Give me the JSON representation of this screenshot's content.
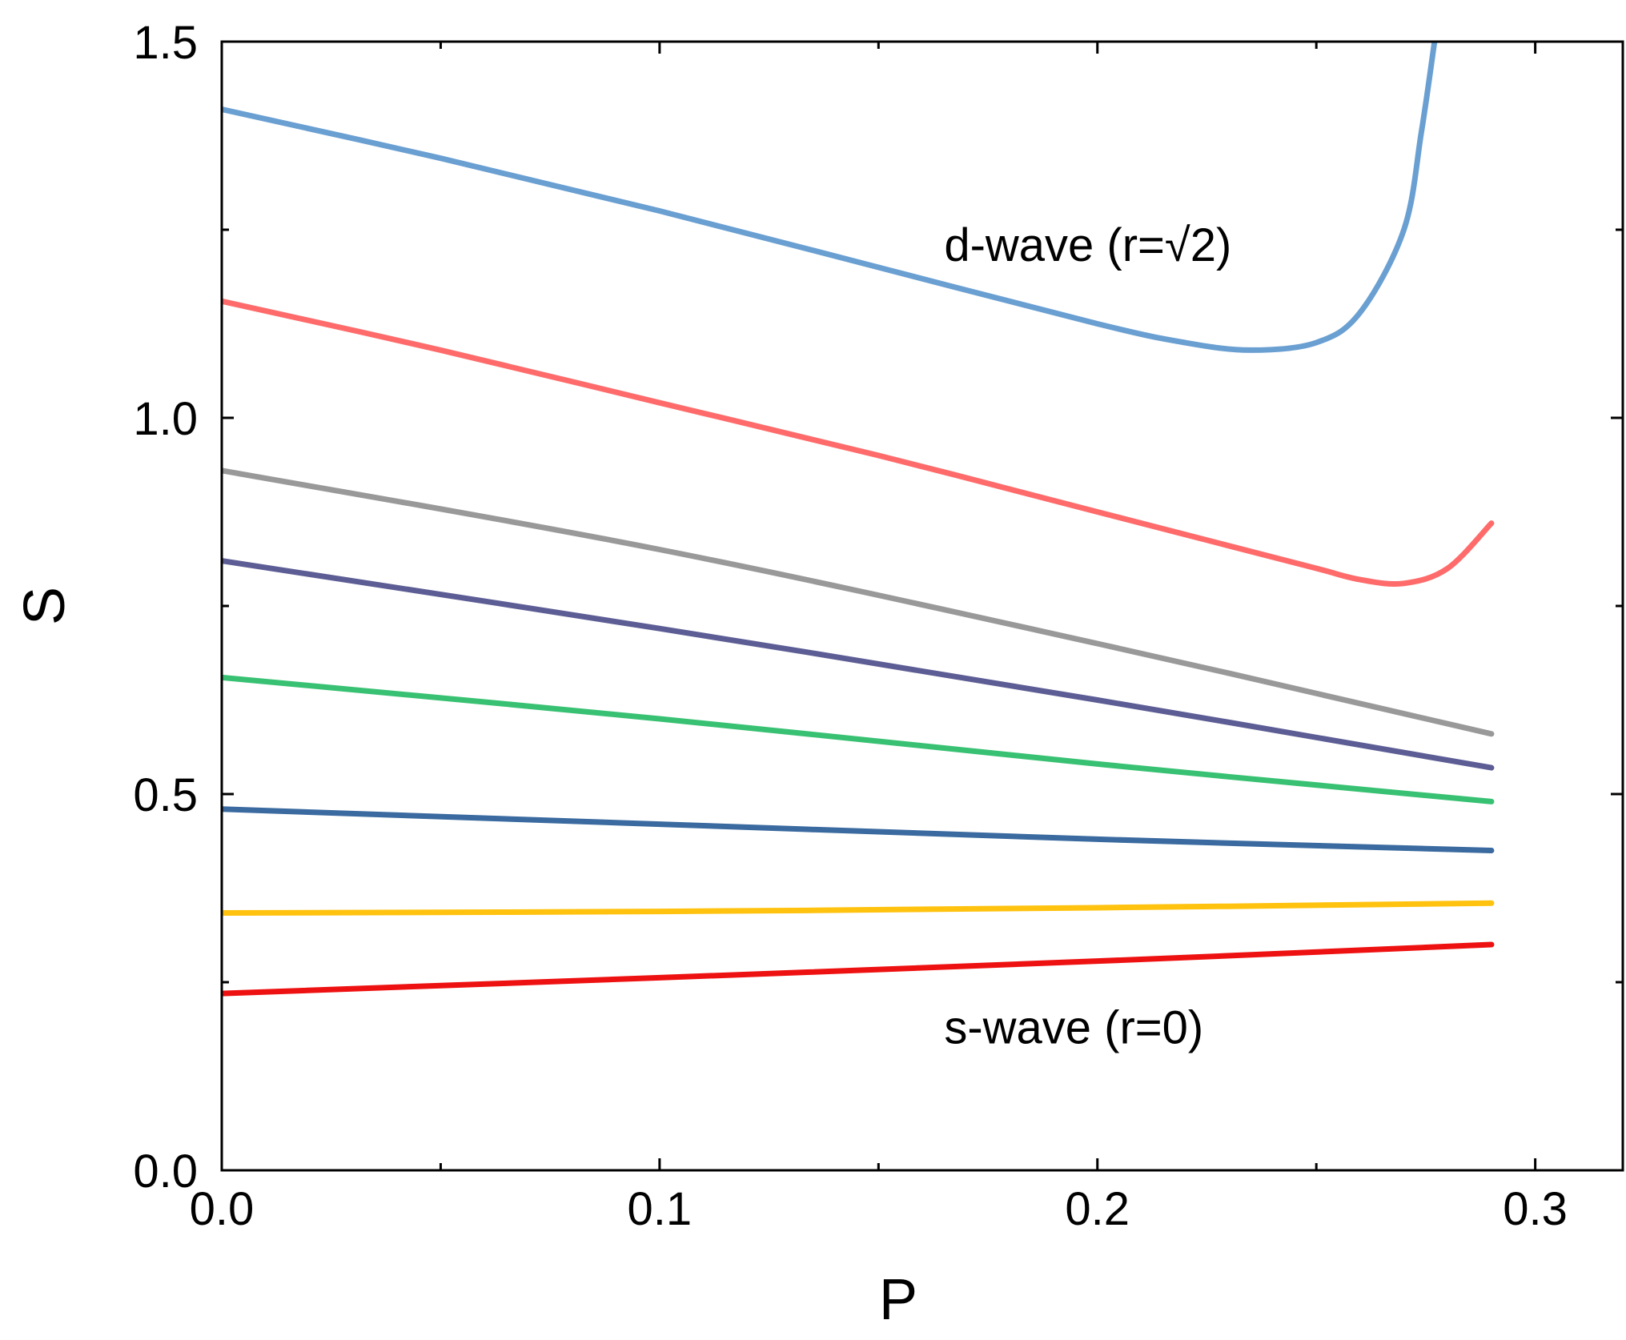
{
  "chart_data": {
    "type": "line",
    "title": "",
    "xlabel": "P",
    "ylabel": "S",
    "xlim": [
      0,
      0.32
    ],
    "ylim": [
      0,
      1.5
    ],
    "x_ticks": [
      0.0,
      0.1,
      0.2,
      0.3
    ],
    "x_tick_labels": [
      "0.0",
      "0.1",
      "0.2",
      "0.3"
    ],
    "x_minor_ticks": [
      0.05,
      0.15,
      0.25
    ],
    "y_ticks": [
      0.0,
      0.5,
      1.0,
      1.5
    ],
    "y_tick_labels": [
      "0.0",
      "0.5",
      "1.0",
      "1.5"
    ],
    "y_minor_ticks": [
      0.25,
      0.75,
      1.25
    ],
    "grid": false,
    "annotations": [
      {
        "text": "d-wave (r=√2)",
        "x": 0.165,
        "y": 1.23
      },
      {
        "text": "s-wave (r=0)",
        "x": 0.165,
        "y": 0.19
      }
    ],
    "series": [
      {
        "name": "curve-1",
        "color": "#6a9fd2",
        "x": [
          0.0,
          0.05,
          0.1,
          0.15,
          0.2,
          0.22,
          0.235,
          0.25,
          0.26,
          0.27,
          0.274,
          0.277
        ],
        "y": [
          1.41,
          1.345,
          1.275,
          1.2,
          1.125,
          1.1,
          1.09,
          1.1,
          1.14,
          1.25,
          1.38,
          1.5
        ]
      },
      {
        "name": "curve-2",
        "color": "#ff6b6b",
        "x": [
          0.0,
          0.05,
          0.1,
          0.15,
          0.2,
          0.23,
          0.25,
          0.26,
          0.27,
          0.28,
          0.29
        ],
        "y": [
          1.155,
          1.09,
          1.02,
          0.95,
          0.875,
          0.83,
          0.8,
          0.785,
          0.78,
          0.8,
          0.86
        ]
      },
      {
        "name": "curve-3",
        "color": "#999999",
        "x": [
          0.0,
          0.1,
          0.2,
          0.29
        ],
        "y": [
          0.93,
          0.825,
          0.7,
          0.58
        ]
      },
      {
        "name": "curve-4",
        "color": "#5d5d95",
        "x": [
          0.0,
          0.1,
          0.2,
          0.29
        ],
        "y": [
          0.81,
          0.72,
          0.625,
          0.535
        ]
      },
      {
        "name": "curve-5",
        "color": "#38c172",
        "x": [
          0.0,
          0.1,
          0.2,
          0.29
        ],
        "y": [
          0.655,
          0.6,
          0.54,
          0.49
        ]
      },
      {
        "name": "curve-6",
        "color": "#3a6a9f",
        "x": [
          0.0,
          0.1,
          0.2,
          0.29
        ],
        "y": [
          0.48,
          0.46,
          0.44,
          0.425
        ]
      },
      {
        "name": "curve-7",
        "color": "#ffc20e",
        "x": [
          0.0,
          0.1,
          0.2,
          0.29
        ],
        "y": [
          0.342,
          0.344,
          0.349,
          0.355
        ]
      },
      {
        "name": "curve-8",
        "color": "#ee1111",
        "x": [
          0.0,
          0.1,
          0.2,
          0.29
        ],
        "y": [
          0.235,
          0.256,
          0.278,
          0.3
        ]
      }
    ]
  }
}
